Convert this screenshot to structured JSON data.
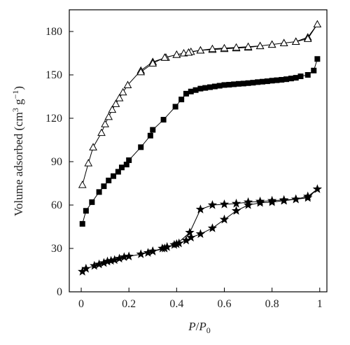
{
  "chart_data": {
    "type": "scatter",
    "xlabel": "P/P0",
    "ylabel": "Volume adsorbed (cm3 g−1)",
    "xlim": [
      -0.05,
      1.03
    ],
    "ylim": [
      0,
      195
    ],
    "x_ticks": [
      0,
      0.2,
      0.4,
      0.6,
      0.8,
      1
    ],
    "x_tick_labels": [
      "0",
      "0.2",
      "0.4",
      "0.6",
      "0.8",
      "1"
    ],
    "y_ticks": [
      0,
      30,
      60,
      90,
      120,
      150,
      180
    ],
    "y_tick_labels": [
      "0",
      "30",
      "60",
      "90",
      "120",
      "150",
      "180"
    ],
    "grid": false,
    "legend": "none",
    "series": [
      {
        "marker": "open-triangle",
        "color": "#000000",
        "points": [
          [
            0.005,
            74
          ],
          [
            0.03,
            89
          ],
          [
            0.05,
            100
          ],
          [
            0.085,
            110
          ],
          [
            0.1,
            116
          ],
          [
            0.115,
            121
          ],
          [
            0.13,
            126
          ],
          [
            0.145,
            130
          ],
          [
            0.16,
            134
          ],
          [
            0.175,
            138
          ],
          [
            0.195,
            143
          ],
          [
            0.25,
            153
          ],
          [
            0.3,
            159
          ],
          [
            0.355,
            162
          ],
          [
            0.4,
            164
          ],
          [
            0.43,
            165
          ],
          [
            0.46,
            166
          ],
          [
            0.5,
            167
          ],
          [
            0.55,
            167.5
          ],
          [
            0.6,
            168
          ],
          [
            0.65,
            168.5
          ],
          [
            0.7,
            169
          ],
          [
            0.75,
            170
          ],
          [
            0.8,
            171
          ],
          [
            0.85,
            172
          ],
          [
            0.9,
            173
          ],
          [
            0.95,
            176
          ],
          [
            0.99,
            185
          ],
          [
            0.95,
            175
          ],
          [
            0.9,
            173
          ],
          [
            0.85,
            172
          ],
          [
            0.8,
            171
          ],
          [
            0.75,
            170
          ],
          [
            0.7,
            169.5
          ],
          [
            0.65,
            169
          ],
          [
            0.6,
            168.5
          ],
          [
            0.55,
            168
          ],
          [
            0.5,
            167
          ],
          [
            0.45,
            165.5
          ],
          [
            0.4,
            164
          ],
          [
            0.35,
            162
          ],
          [
            0.3,
            158
          ],
          [
            0.25,
            152
          ]
        ]
      },
      {
        "marker": "filled-square",
        "color": "#000000",
        "points": [
          [
            0.005,
            47
          ],
          [
            0.02,
            56
          ],
          [
            0.045,
            62
          ],
          [
            0.075,
            69
          ],
          [
            0.095,
            73
          ],
          [
            0.115,
            77
          ],
          [
            0.135,
            80
          ],
          [
            0.155,
            83
          ],
          [
            0.17,
            86
          ],
          [
            0.19,
            88
          ],
          [
            0.2,
            91
          ],
          [
            0.25,
            100
          ],
          [
            0.29,
            108
          ],
          [
            0.3,
            112
          ],
          [
            0.345,
            119
          ],
          [
            0.395,
            128
          ],
          [
            0.42,
            133
          ],
          [
            0.44,
            137
          ],
          [
            0.46,
            138.5
          ],
          [
            0.48,
            139.5
          ],
          [
            0.5,
            140.5
          ],
          [
            0.52,
            141
          ],
          [
            0.54,
            141.5
          ],
          [
            0.56,
            142
          ],
          [
            0.58,
            142.5
          ],
          [
            0.6,
            143
          ],
          [
            0.62,
            143.2
          ],
          [
            0.64,
            143.5
          ],
          [
            0.66,
            143.8
          ],
          [
            0.68,
            144
          ],
          [
            0.7,
            144.3
          ],
          [
            0.72,
            144.6
          ],
          [
            0.74,
            145
          ],
          [
            0.76,
            145.3
          ],
          [
            0.78,
            145.6
          ],
          [
            0.8,
            146
          ],
          [
            0.82,
            146.3
          ],
          [
            0.84,
            146.6
          ],
          [
            0.86,
            147
          ],
          [
            0.88,
            147.5
          ],
          [
            0.9,
            148
          ],
          [
            0.92,
            149
          ],
          [
            0.95,
            150
          ],
          [
            0.975,
            153
          ],
          [
            0.99,
            161
          ]
        ]
      },
      {
        "marker": "filled-star",
        "color": "#000000",
        "points": [
          [
            0.005,
            14
          ],
          [
            0.02,
            16
          ],
          [
            0.055,
            18
          ],
          [
            0.075,
            19
          ],
          [
            0.095,
            20
          ],
          [
            0.11,
            21
          ],
          [
            0.125,
            21.5
          ],
          [
            0.14,
            22
          ],
          [
            0.16,
            23
          ],
          [
            0.18,
            24
          ],
          [
            0.2,
            24.5
          ],
          [
            0.25,
            26
          ],
          [
            0.28,
            27
          ],
          [
            0.3,
            28
          ],
          [
            0.34,
            30
          ],
          [
            0.36,
            31
          ],
          [
            0.39,
            32.5
          ],
          [
            0.41,
            33.5
          ],
          [
            0.44,
            35.5
          ],
          [
            0.46,
            37.5
          ],
          [
            0.5,
            40
          ],
          [
            0.55,
            44
          ],
          [
            0.6,
            50
          ],
          [
            0.65,
            56
          ],
          [
            0.7,
            60
          ],
          [
            0.75,
            61.5
          ],
          [
            0.8,
            62
          ],
          [
            0.85,
            63
          ],
          [
            0.9,
            64
          ],
          [
            0.95,
            66
          ],
          [
            0.99,
            71
          ],
          [
            0.95,
            65
          ],
          [
            0.9,
            64
          ],
          [
            0.85,
            63.5
          ],
          [
            0.8,
            63
          ],
          [
            0.75,
            62.5
          ],
          [
            0.7,
            62
          ],
          [
            0.65,
            61
          ],
          [
            0.6,
            60.5
          ],
          [
            0.55,
            60
          ],
          [
            0.5,
            57
          ],
          [
            0.455,
            41
          ],
          [
            0.4,
            33
          ],
          [
            0.35,
            30
          ],
          [
            0.3,
            28
          ]
        ]
      }
    ]
  }
}
